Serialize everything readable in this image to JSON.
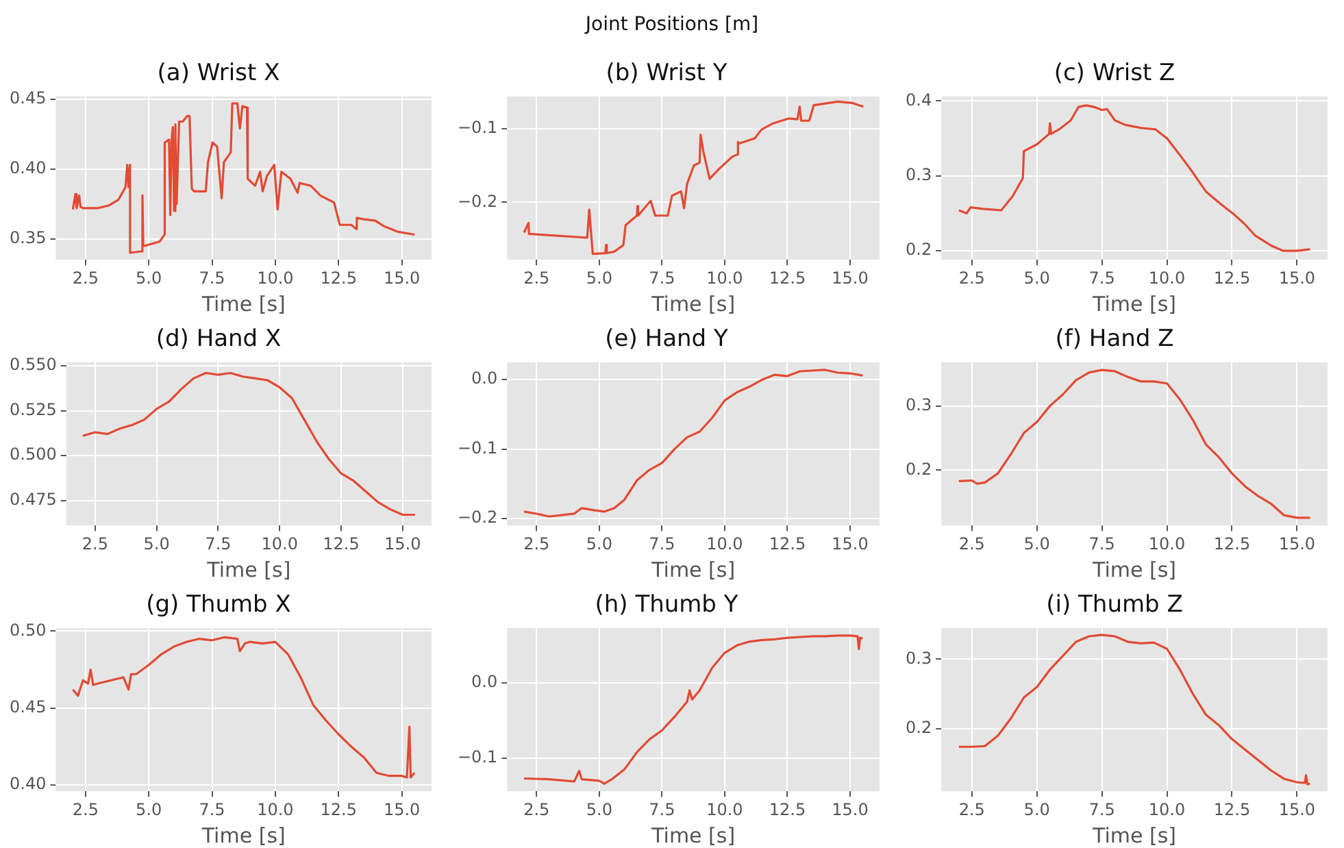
{
  "chart_data": [
    {
      "type": "other",
      "title": "Joint Positions [m]"
    },
    {
      "type": "line",
      "title": "(a) Wrist X",
      "xlabel": "Time [s]",
      "color": "#e24a33",
      "grid": true,
      "xlim": [
        1.325,
        16.175
      ],
      "ylim": [
        0.335,
        0.452
      ],
      "xticks": [
        2.5,
        {
          "value": 5,
          "label": "5.0"
        },
        7.5,
        {
          "value": 10,
          "label": "10.0"
        },
        12.5,
        {
          "value": 15,
          "label": "15.0"
        }
      ],
      "yticks": [
        0.35,
        {
          "value": 0.4,
          "label": "0.40"
        },
        0.45
      ],
      "x": [
        2.0,
        2.1,
        2.15,
        2.25,
        2.3,
        2.4,
        3.0,
        3.44,
        3.8,
        4.08,
        4.15,
        4.2,
        4.26,
        4.26,
        4.71,
        4.75,
        4.78,
        4.85,
        5.43,
        5.62,
        5.63,
        5.8,
        5.85,
        5.9,
        5.95,
        6.0,
        6.05,
        6.1,
        6.2,
        6.34,
        6.52,
        6.61,
        6.7,
        6.79,
        7.25,
        7.34,
        7.52,
        7.7,
        7.88,
        7.97,
        8.24,
        8.3,
        8.5,
        8.6,
        8.7,
        8.88,
        8.91,
        9.2,
        9.4,
        9.5,
        9.67,
        9.96,
        10.09,
        10.24,
        10.6,
        10.88,
        10.96,
        11.4,
        11.78,
        12.32,
        12.55,
        13.0,
        13.2,
        13.22,
        13.5,
        13.95,
        14.3,
        14.85,
        15.5
      ],
      "values": [
        0.371,
        0.382,
        0.372,
        0.381,
        0.373,
        0.372,
        0.372,
        0.374,
        0.378,
        0.387,
        0.403,
        0.387,
        0.403,
        0.34,
        0.341,
        0.381,
        0.345,
        0.345,
        0.348,
        0.353,
        0.419,
        0.421,
        0.367,
        0.42,
        0.43,
        0.37,
        0.432,
        0.375,
        0.434,
        0.434,
        0.438,
        0.438,
        0.386,
        0.384,
        0.384,
        0.405,
        0.419,
        0.416,
        0.379,
        0.405,
        0.412,
        0.447,
        0.447,
        0.429,
        0.445,
        0.444,
        0.393,
        0.388,
        0.398,
        0.384,
        0.395,
        0.403,
        0.371,
        0.398,
        0.393,
        0.383,
        0.39,
        0.388,
        0.381,
        0.376,
        0.36,
        0.36,
        0.357,
        0.365,
        0.364,
        0.363,
        0.359,
        0.355,
        0.353
      ]
    },
    {
      "type": "line",
      "title": "(b) Wrist Y",
      "xlabel": "Time [s]",
      "color": "#e24a33",
      "grid": true,
      "xlim": [
        1.325,
        16.175
      ],
      "ylim": [
        -0.278,
        -0.056
      ],
      "xticks": [
        2.5,
        {
          "value": 5,
          "label": "5.0"
        },
        7.5,
        {
          "value": 10,
          "label": "10.0"
        },
        12.5,
        {
          "value": 15,
          "label": "15.0"
        }
      ],
      "yticks": [
        {
          "value": -0.2,
          "label": "−0.2"
        },
        {
          "value": -0.1,
          "label": "−0.1"
        }
      ],
      "x": [
        2.0,
        2.18,
        2.2,
        2.27,
        4.52,
        4.6,
        4.74,
        5.24,
        5.27,
        5.3,
        5.6,
        5.96,
        6.05,
        6.5,
        6.52,
        6.55,
        6.87,
        7.05,
        7.23,
        7.73,
        7.9,
        8.26,
        8.38,
        8.5,
        8.77,
        9.0,
        9.04,
        9.15,
        9.4,
        9.76,
        10.3,
        10.5,
        10.53,
        10.57,
        11.2,
        11.47,
        11.9,
        12.55,
        12.9,
        12.99,
        13.05,
        13.37,
        13.55,
        14.5,
        15.1,
        15.53
      ],
      "values": [
        -0.241,
        -0.228,
        -0.243,
        -0.243,
        -0.248,
        -0.21,
        -0.27,
        -0.269,
        -0.258,
        -0.269,
        -0.267,
        -0.258,
        -0.231,
        -0.218,
        -0.205,
        -0.218,
        -0.205,
        -0.198,
        -0.218,
        -0.218,
        -0.191,
        -0.185,
        -0.208,
        -0.175,
        -0.15,
        -0.146,
        -0.108,
        -0.131,
        -0.168,
        -0.155,
        -0.138,
        -0.135,
        -0.118,
        -0.12,
        -0.113,
        -0.101,
        -0.093,
        -0.086,
        -0.087,
        -0.07,
        -0.089,
        -0.089,
        -0.068,
        -0.063,
        -0.065,
        -0.07
      ]
    },
    {
      "type": "line",
      "title": "(c) Wrist Z",
      "xlabel": "Time [s]",
      "color": "#e24a33",
      "grid": true,
      "xlim": [
        1.325,
        16.175
      ],
      "ylim": [
        0.188,
        0.406
      ],
      "xticks": [
        2.5,
        {
          "value": 5,
          "label": "5.0"
        },
        7.5,
        {
          "value": 10,
          "label": "10.0"
        },
        12.5,
        {
          "value": 15,
          "label": "15.0"
        }
      ],
      "yticks": [
        0.2,
        0.3,
        0.4
      ],
      "x": [
        2.0,
        2.3,
        2.45,
        2.9,
        3.63,
        4.07,
        4.46,
        4.5,
        5.0,
        5.47,
        5.5,
        5.55,
        5.85,
        6.3,
        6.6,
        6.9,
        7.19,
        7.5,
        7.7,
        8.0,
        8.4,
        9.0,
        9.56,
        10.0,
        10.45,
        10.9,
        11.5,
        12.08,
        12.53,
        12.98,
        13.4,
        14.0,
        14.46,
        15.0,
        15.5
      ],
      "values": [
        0.254,
        0.25,
        0.258,
        0.256,
        0.254,
        0.273,
        0.297,
        0.333,
        0.342,
        0.356,
        0.37,
        0.356,
        0.362,
        0.374,
        0.392,
        0.394,
        0.392,
        0.388,
        0.389,
        0.374,
        0.368,
        0.364,
        0.362,
        0.35,
        0.33,
        0.309,
        0.279,
        0.262,
        0.25,
        0.236,
        0.22,
        0.207,
        0.2,
        0.2,
        0.202
      ]
    },
    {
      "type": "line",
      "title": "(d) Hand X",
      "xlabel": "Time [s]",
      "color": "#e24a33",
      "grid": true,
      "xlim": [
        1.325,
        16.175
      ],
      "ylim": [
        0.461,
        0.552
      ],
      "xticks": [
        2.5,
        {
          "value": 5,
          "label": "5.0"
        },
        7.5,
        {
          "value": 10,
          "label": "10.0"
        },
        12.5,
        {
          "value": 15,
          "label": "15.0"
        }
      ],
      "yticks": [
        0.475,
        {
          "value": 0.5,
          "label": "0.500"
        },
        0.525,
        {
          "value": 0.55,
          "label": "0.550"
        }
      ],
      "x": [
        2.0,
        2.5,
        3.0,
        3.5,
        4.0,
        4.5,
        5.0,
        5.5,
        6.0,
        6.5,
        7.0,
        7.5,
        8.0,
        8.5,
        9.0,
        9.5,
        10.0,
        10.5,
        11.0,
        11.5,
        12.0,
        12.5,
        13.0,
        13.5,
        14.0,
        14.5,
        15.0,
        15.5
      ],
      "values": [
        0.511,
        0.513,
        0.512,
        0.515,
        0.517,
        0.52,
        0.526,
        0.53,
        0.537,
        0.543,
        0.546,
        0.545,
        0.546,
        0.544,
        0.543,
        0.542,
        0.538,
        0.532,
        0.52,
        0.508,
        0.498,
        0.49,
        0.486,
        0.48,
        0.474,
        0.47,
        0.467,
        0.467
      ]
    },
    {
      "type": "line",
      "title": "(e) Hand Y",
      "xlabel": "Time [s]",
      "color": "#e24a33",
      "grid": true,
      "xlim": [
        1.325,
        16.175
      ],
      "ylim": [
        -0.21,
        0.025
      ],
      "xticks": [
        2.5,
        {
          "value": 5,
          "label": "5.0"
        },
        7.5,
        {
          "value": 10,
          "label": "10.0"
        },
        12.5,
        {
          "value": 15,
          "label": "15.0"
        }
      ],
      "yticks": [
        {
          "value": -0.2,
          "label": "−0.2"
        },
        {
          "value": -0.1,
          "label": "−0.1"
        },
        {
          "value": 0,
          "label": "0.0"
        }
      ],
      "x": [
        2.0,
        2.5,
        3.0,
        3.5,
        4.0,
        4.3,
        4.8,
        5.2,
        5.6,
        6.0,
        6.5,
        7.0,
        7.5,
        8.0,
        8.5,
        9.0,
        9.5,
        10.0,
        10.5,
        11.0,
        11.5,
        12.0,
        12.5,
        13.0,
        13.5,
        14.0,
        14.5,
        15.0,
        15.5
      ],
      "values": [
        -0.19,
        -0.193,
        -0.197,
        -0.195,
        -0.193,
        -0.185,
        -0.188,
        -0.19,
        -0.185,
        -0.173,
        -0.145,
        -0.13,
        -0.12,
        -0.1,
        -0.083,
        -0.075,
        -0.055,
        -0.03,
        -0.018,
        -0.01,
        0.0,
        0.007,
        0.005,
        0.012,
        0.013,
        0.014,
        0.01,
        0.009,
        0.006
      ]
    },
    {
      "type": "line",
      "title": "(f) Hand Z",
      "xlabel": "Time [s]",
      "color": "#e24a33",
      "grid": true,
      "xlim": [
        1.325,
        16.175
      ],
      "ylim": [
        0.114,
        0.368
      ],
      "xticks": [
        2.5,
        {
          "value": 5,
          "label": "5.0"
        },
        7.5,
        {
          "value": 10,
          "label": "10.0"
        },
        12.5,
        {
          "value": 15,
          "label": "15.0"
        }
      ],
      "yticks": [
        0.2,
        0.3
      ],
      "x": [
        2.0,
        2.5,
        2.7,
        3.0,
        3.5,
        4.0,
        4.5,
        5.0,
        5.5,
        6.0,
        6.5,
        7.0,
        7.5,
        8.0,
        8.5,
        9.0,
        9.5,
        10.0,
        10.5,
        11.0,
        11.5,
        12.0,
        12.5,
        13.0,
        13.5,
        14.0,
        14.5,
        15.0,
        15.5
      ],
      "values": [
        0.183,
        0.184,
        0.179,
        0.181,
        0.195,
        0.225,
        0.258,
        0.275,
        0.3,
        0.318,
        0.34,
        0.352,
        0.356,
        0.354,
        0.345,
        0.338,
        0.338,
        0.335,
        0.31,
        0.278,
        0.24,
        0.22,
        0.195,
        0.175,
        0.16,
        0.148,
        0.13,
        0.126,
        0.126
      ]
    },
    {
      "type": "line",
      "title": "(g) Thumb X",
      "xlabel": "Time [s]",
      "color": "#e24a33",
      "grid": true,
      "xlim": [
        1.325,
        16.175
      ],
      "ylim": [
        0.396,
        0.502
      ],
      "xticks": [
        2.5,
        {
          "value": 5,
          "label": "5.0"
        },
        7.5,
        {
          "value": 10,
          "label": "10.0"
        },
        12.5,
        {
          "value": 15,
          "label": "15.0"
        }
      ],
      "yticks": [
        {
          "value": 0.4,
          "label": "0.40"
        },
        0.45,
        {
          "value": 0.5,
          "label": "0.50"
        }
      ],
      "x": [
        2.0,
        2.2,
        2.4,
        2.6,
        2.7,
        2.8,
        3.0,
        3.5,
        4.0,
        4.2,
        4.3,
        4.5,
        5.0,
        5.5,
        6.0,
        6.5,
        7.0,
        7.5,
        8.0,
        8.5,
        8.6,
        8.8,
        9.0,
        9.5,
        10.0,
        10.5,
        11.0,
        11.5,
        12.0,
        12.5,
        13.0,
        13.5,
        14.0,
        14.5,
        15.0,
        15.2,
        15.3,
        15.35,
        15.5
      ],
      "values": [
        0.462,
        0.458,
        0.468,
        0.466,
        0.475,
        0.465,
        0.466,
        0.468,
        0.47,
        0.462,
        0.472,
        0.472,
        0.478,
        0.485,
        0.49,
        0.493,
        0.495,
        0.494,
        0.496,
        0.495,
        0.487,
        0.492,
        0.493,
        0.492,
        0.493,
        0.485,
        0.47,
        0.452,
        0.442,
        0.433,
        0.425,
        0.418,
        0.408,
        0.406,
        0.406,
        0.405,
        0.438,
        0.405,
        0.408
      ]
    },
    {
      "type": "line",
      "title": "(h) Thumb Y",
      "xlabel": "Time [s]",
      "color": "#e24a33",
      "grid": true,
      "xlim": [
        1.325,
        16.175
      ],
      "ylim": [
        -0.144,
        0.073
      ],
      "xticks": [
        2.5,
        {
          "value": 5,
          "label": "5.0"
        },
        7.5,
        {
          "value": 10,
          "label": "10.0"
        },
        12.5,
        {
          "value": 15,
          "label": "15.0"
        }
      ],
      "yticks": [
        {
          "value": -0.1,
          "label": "−0.1"
        },
        {
          "value": 0,
          "label": "0.0"
        }
      ],
      "x": [
        2.0,
        3.0,
        4.0,
        4.2,
        4.3,
        5.0,
        5.2,
        5.5,
        6.0,
        6.5,
        7.0,
        7.5,
        8.0,
        8.5,
        8.6,
        8.7,
        9.0,
        9.5,
        10.0,
        10.5,
        11.0,
        11.5,
        12.0,
        12.5,
        13.0,
        13.5,
        14.0,
        14.5,
        15.0,
        15.3,
        15.35,
        15.4,
        15.5
      ],
      "values": [
        -0.127,
        -0.128,
        -0.131,
        -0.117,
        -0.128,
        -0.13,
        -0.134,
        -0.128,
        -0.115,
        -0.092,
        -0.075,
        -0.063,
        -0.045,
        -0.025,
        -0.01,
        -0.022,
        -0.01,
        0.02,
        0.04,
        0.05,
        0.055,
        0.057,
        0.058,
        0.06,
        0.061,
        0.062,
        0.062,
        0.063,
        0.063,
        0.062,
        0.045,
        0.06,
        0.059
      ]
    },
    {
      "type": "line",
      "title": "(i) Thumb Z",
      "xlabel": "Time [s]",
      "color": "#e24a33",
      "grid": true,
      "xlim": [
        1.325,
        16.175
      ],
      "ylim": [
        0.11,
        0.345
      ],
      "xticks": [
        2.5,
        {
          "value": 5,
          "label": "5.0"
        },
        7.5,
        {
          "value": 10,
          "label": "10.0"
        },
        12.5,
        {
          "value": 15,
          "label": "15.0"
        }
      ],
      "yticks": [
        0.2,
        0.3
      ],
      "x": [
        2.0,
        2.5,
        3.0,
        3.5,
        4.0,
        4.5,
        5.0,
        5.5,
        6.0,
        6.5,
        7.0,
        7.5,
        8.0,
        8.5,
        9.0,
        9.5,
        10.0,
        10.5,
        11.0,
        11.5,
        12.0,
        12.5,
        13.0,
        13.5,
        14.0,
        14.5,
        15.0,
        15.3,
        15.35,
        15.4,
        15.5
      ],
      "values": [
        0.174,
        0.174,
        0.175,
        0.19,
        0.215,
        0.245,
        0.26,
        0.285,
        0.305,
        0.325,
        0.333,
        0.335,
        0.333,
        0.325,
        0.323,
        0.324,
        0.315,
        0.285,
        0.25,
        0.22,
        0.205,
        0.185,
        0.17,
        0.155,
        0.14,
        0.128,
        0.123,
        0.122,
        0.133,
        0.12,
        0.121
      ]
    }
  ]
}
